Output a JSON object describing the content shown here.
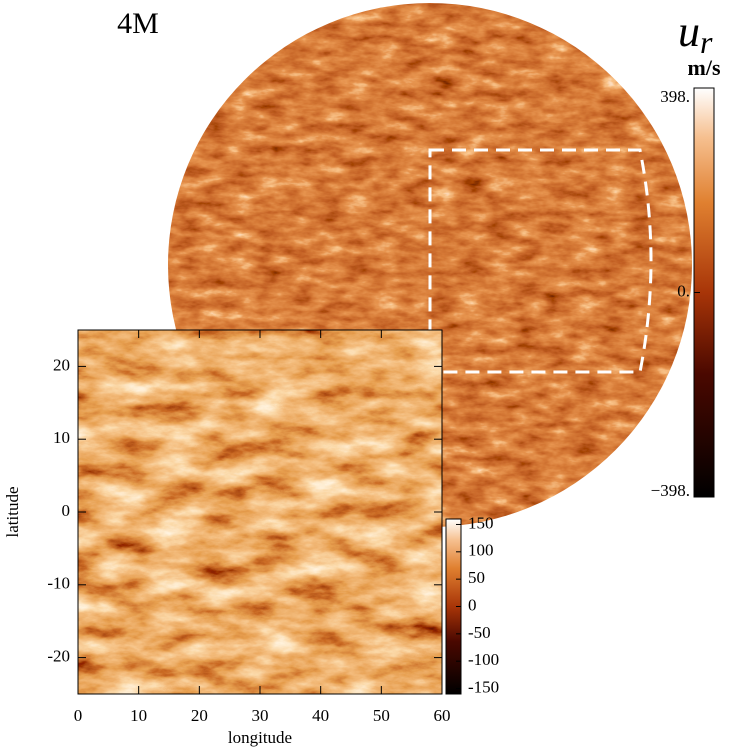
{
  "label": "4M",
  "colorbar": {
    "title": "u",
    "subscript": "r",
    "unit": "m/s",
    "lim": [
      -398,
      398
    ],
    "ticks": [
      {
        "value": 398,
        "label": "398."
      },
      {
        "value": 0,
        "label": "0."
      },
      {
        "value": -398,
        "label": "−398."
      }
    ]
  },
  "inset": {
    "xlabel": "longitude",
    "ylabel": "latitude",
    "xlim": [
      0,
      60
    ],
    "ylim": [
      -25,
      25
    ],
    "xticks": [
      0,
      10,
      20,
      30,
      40,
      50,
      60
    ],
    "yticks": [
      -20,
      -10,
      0,
      10,
      20
    ],
    "colorbar": {
      "lim": [
        -160,
        160
      ],
      "ticks": [
        -150,
        -100,
        -50,
        0,
        50,
        100,
        150
      ]
    }
  }
}
